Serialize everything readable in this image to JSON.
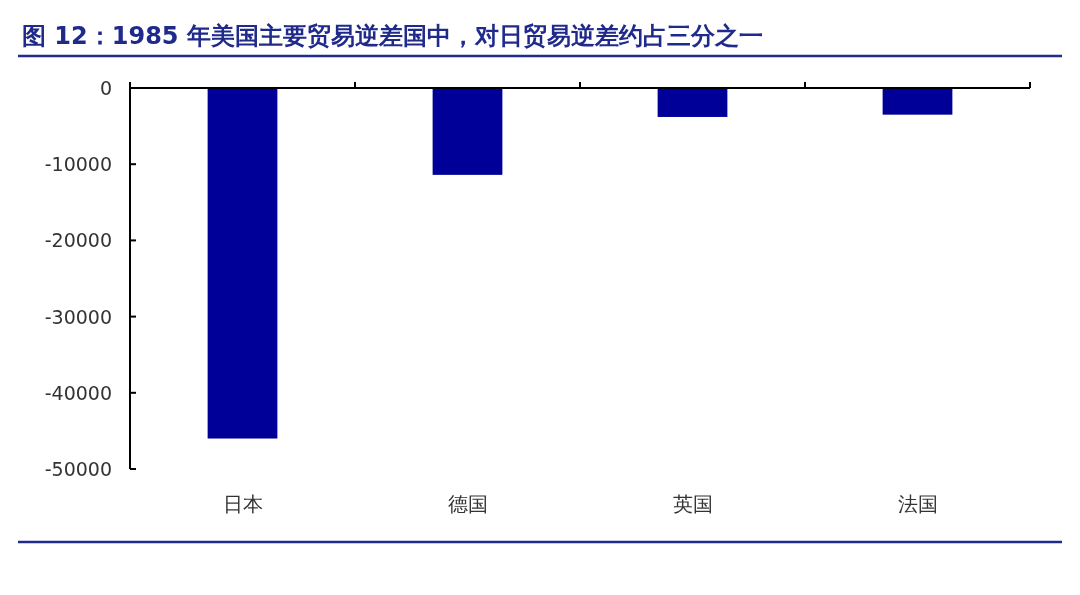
{
  "chart_data": {
    "type": "bar",
    "title": "图 12：1985 年美国主要贸易逆差国中，对日贸易逆差约占三分之一",
    "categories": [
      "日本",
      "德国",
      "英国",
      "法国"
    ],
    "values": [
      -46000,
      -11400,
      -3800,
      -3500
    ],
    "color": "#000099",
    "ylim": [
      -50000,
      0
    ],
    "yticks": [
      0,
      -10000,
      -20000,
      -30000,
      -40000,
      -50000
    ]
  }
}
